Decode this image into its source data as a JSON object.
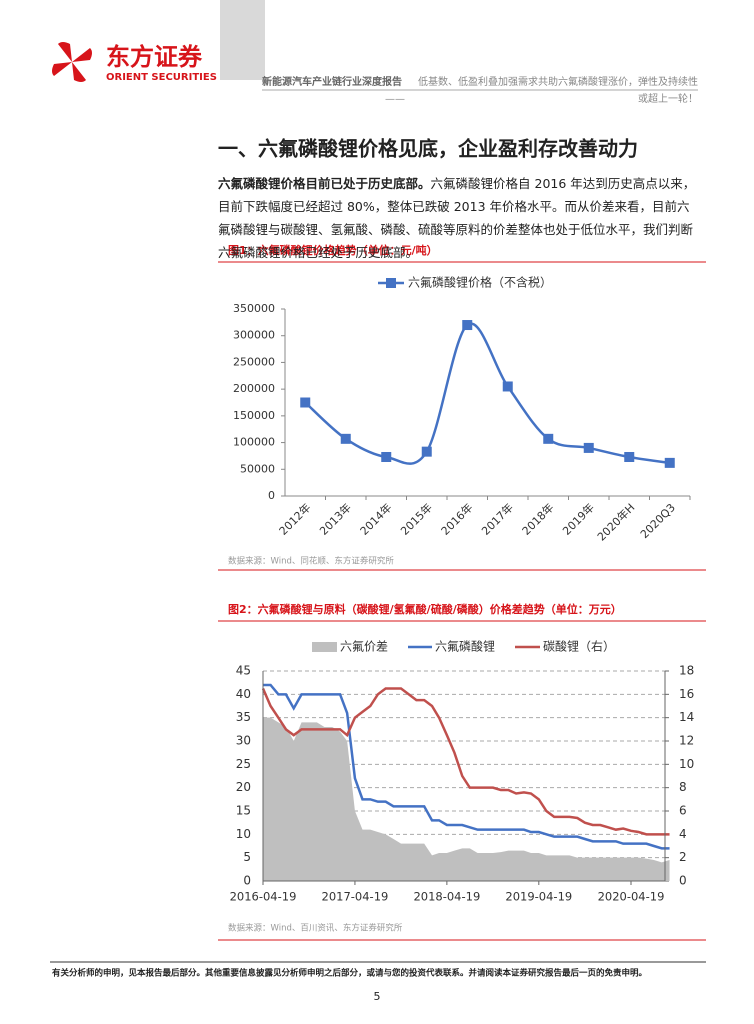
{
  "header": {
    "company": "东方证券",
    "company_en": "ORIENT SECURITIES",
    "report": "新能源汽车产业链行业深度报告",
    "subtitle": "低基数、低盈利叠加强需求共助六氟磷酸锂涨价，弹性及持续性",
    "subtitle_dash": "——",
    "subtitle_end": "或超上一轮！"
  },
  "section_title": "一、六氟磷酸锂价格见底，企业盈利存改善动力",
  "paragraph": {
    "lead": "六氟磷酸锂价格目前已处于历史底部。",
    "text": "六氟磷酸锂价格自 2016 年达到历史高点以来，目前下跌幅度已经超过 80%，整体已跌破 2013 年价格水平。而从价差来看，目前六氟磷酸锂与碳酸锂、氢氟酸、磷酸、硫酸等原料的价差整体也处于低位水平，我们判断六氟磷酸锂价格已经处于历史底部。"
  },
  "figures": [
    {
      "caption": "图1：六氟磷酸锂价格趋势（单位：元/吨）",
      "source": "数据来源：Wind、同花顺、东方证券研究所",
      "chart_data": {
        "type": "line",
        "categories": [
          "2012年",
          "2013年",
          "2014年",
          "2015年",
          "2016年",
          "2017年",
          "2018年",
          "2019年",
          "2020年H",
          "2020Q3"
        ],
        "series": [
          {
            "name": "六氟磷酸锂价格（不含税）",
            "color": "#4472c4",
            "values": [
              175000,
              107000,
              73000,
              83000,
              320000,
              205000,
              107000,
              90000,
              73000,
              62000
            ]
          }
        ],
        "ylim": [
          0,
          350000
        ],
        "yticks": [
          0,
          50000,
          100000,
          150000,
          200000,
          250000,
          300000,
          350000
        ],
        "grid": false,
        "legend": "top"
      }
    },
    {
      "caption": "图2：六氟磷酸锂与原料（碳酸锂/氢氟酸/硫酸/磷酸）价格差趋势（单位：万元）",
      "source": "数据来源：Wind、百川资讯、东方证券研究所",
      "chart_data": {
        "type": "line",
        "x": [
          "2016-04-19",
          "2016-05-19",
          "2016-06-19",
          "2016-07-19",
          "2016-08-19",
          "2016-09-19",
          "2016-10-19",
          "2016-11-19",
          "2016-12-19",
          "2017-01-19",
          "2017-02-19",
          "2017-03-19",
          "2017-04-19",
          "2017-05-19",
          "2017-06-19",
          "2017-07-19",
          "2017-08-19",
          "2017-09-19",
          "2017-10-19",
          "2017-11-19",
          "2017-12-19",
          "2018-01-19",
          "2018-02-19",
          "2018-03-19",
          "2018-04-19",
          "2018-05-19",
          "2018-06-19",
          "2018-07-19",
          "2018-08-19",
          "2018-09-19",
          "2018-10-19",
          "2018-11-19",
          "2018-12-19",
          "2019-01-19",
          "2019-02-19",
          "2019-03-19",
          "2019-04-19",
          "2019-05-19",
          "2019-06-19",
          "2019-07-19",
          "2019-08-19",
          "2019-09-19",
          "2019-10-19",
          "2019-11-19",
          "2019-12-19",
          "2020-01-19",
          "2020-02-19",
          "2020-03-19",
          "2020-04-19",
          "2020-05-19",
          "2020-06-19",
          "2020-07-19",
          "2020-08-19",
          "2020-09-19"
        ],
        "series": [
          {
            "name": "六氟价差",
            "kind": "area",
            "color": "#bfbfbf",
            "values": [
              35,
              35,
              34,
              33,
              30,
              34,
              34,
              34,
              33,
              33,
              32,
              30,
              15,
              11,
              11,
              10.5,
              10,
              9,
              8,
              8,
              8,
              8,
              5.5,
              6,
              6,
              6.5,
              7,
              7,
              6,
              6,
              6,
              6.2,
              6.5,
              6.5,
              6.5,
              6,
              6,
              5.5,
              5.5,
              5.5,
              5.5,
              5,
              5,
              5,
              5,
              5,
              5,
              5,
              5,
              5,
              4.8,
              4.5,
              4,
              4.5
            ]
          },
          {
            "name": "六氟磷酸锂",
            "kind": "line",
            "color": "#4472c4",
            "values": [
              42,
              42,
              40,
              40,
              37,
              40,
              40,
              40,
              40,
              40,
              40,
              36,
              22,
              17.5,
              17.5,
              17,
              17,
              16,
              16,
              16,
              16,
              16,
              13,
              13,
              12,
              12,
              12,
              11.5,
              11,
              11,
              11,
              11,
              11,
              11,
              11,
              10.5,
              10.5,
              10,
              9.5,
              9.5,
              9.5,
              9.5,
              9,
              8.5,
              8.5,
              8.5,
              8.5,
              8,
              8,
              8,
              8,
              7.5,
              7,
              7
            ]
          },
          {
            "name": "碳酸锂（右）",
            "kind": "line",
            "axis": "y2",
            "color": "#c0504d",
            "values": [
              16.5,
              15,
              14,
              13,
              12.5,
              13,
              13,
              13,
              13,
              13,
              13,
              12.5,
              14,
              14.5,
              15,
              16,
              16.5,
              16.5,
              16.5,
              16,
              15.5,
              15.5,
              15,
              14,
              12.5,
              11,
              9,
              8,
              8,
              8,
              8,
              7.8,
              7.8,
              7.5,
              7.6,
              7.5,
              7,
              6,
              5.5,
              5.5,
              5.5,
              5.4,
              5,
              4.8,
              4.8,
              4.6,
              4.4,
              4.5,
              4.3,
              4.2,
              4,
              4,
              4,
              4
            ]
          }
        ],
        "xlim": [
          "2016-04-19",
          "2020-09-01"
        ],
        "xticks": [
          "2016-04-19",
          "2017-04-19",
          "2018-04-19",
          "2019-04-19",
          "2020-04-19"
        ],
        "ylim": [
          0,
          45
        ],
        "yticks": [
          0,
          5,
          10,
          15,
          20,
          25,
          30,
          35,
          40,
          45
        ],
        "y2lim": [
          0,
          18
        ],
        "y2ticks": [
          0,
          2,
          4,
          6,
          8,
          10,
          12,
          14,
          16,
          18
        ],
        "grid": true,
        "legend": "top"
      }
    }
  ],
  "footer": {
    "disclaimer": "有关分析师的申明，见本报告最后部分。其他重要信息披露见分析师申明之后部分，或请与您的投资代表联系。并请阅读本证券研究报告最后一页的免责申明。",
    "page": 5
  }
}
